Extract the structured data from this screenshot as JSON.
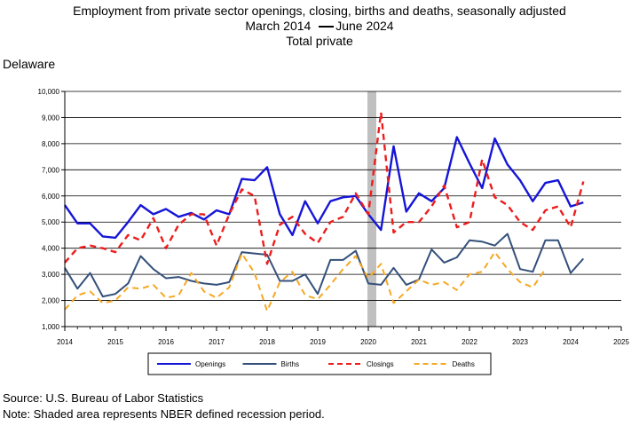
{
  "header": {
    "line1": "Employment from private sector openings, closing, births and deaths, seasonally adjusted",
    "line2_start": "March 2014",
    "line2_end": "June 2024",
    "line3": "Total private"
  },
  "region": "Delaware",
  "footer": {
    "source": "Source: U.S. Bureau of Labor Statistics",
    "note": "Note: Shaded area represents NBER defined recession period."
  },
  "chart_data": {
    "type": "line",
    "x_range": [
      2014,
      2025
    ],
    "y_range": [
      1000,
      10000
    ],
    "x_ticks": [
      "2014",
      "2015",
      "2016",
      "2017",
      "2018",
      "2019",
      "2020",
      "2021",
      "2022",
      "2023",
      "2024",
      "2025"
    ],
    "y_ticks": [
      "1,000",
      "2,000",
      "3,000",
      "4,000",
      "5,000",
      "6,000",
      "7,000",
      "8,000",
      "9,000",
      "10,000"
    ],
    "grid": "horizontal",
    "legend_position": "bottom",
    "recession_shading": {
      "start": 2020.0,
      "end": 2020.17
    },
    "series": [
      {
        "name": "Openings",
        "color": "#1515d8",
        "dash": "solid",
        "width": 2.4,
        "start": 2014.0,
        "values": [
          5650,
          4950,
          4950,
          4450,
          4400,
          5000,
          5650,
          5300,
          5500,
          5200,
          5350,
          5100,
          5450,
          5300,
          6650,
          6600,
          7100,
          5300,
          4500,
          5800,
          4950,
          5800,
          5950,
          6000,
          5300,
          4700,
          7900,
          5400,
          6100,
          5800,
          6300,
          8250,
          7250,
          6300,
          8200,
          7200,
          6600,
          5800,
          6500,
          6600,
          5600,
          5750
        ]
      },
      {
        "name": "Births",
        "color": "#34507a",
        "dash": "solid",
        "width": 2.0,
        "start": 2014.0,
        "values": [
          3250,
          2450,
          3050,
          2150,
          2250,
          2650,
          3700,
          3200,
          2850,
          2900,
          2750,
          2650,
          2600,
          2700,
          3850,
          3800,
          3750,
          2750,
          2750,
          3000,
          2250,
          3550,
          3550,
          3900,
          2650,
          2600,
          3250,
          2600,
          2800,
          3950,
          3450,
          3650,
          4300,
          4250,
          4100,
          4550,
          3200,
          3100,
          4300,
          4300,
          3050,
          3600
        ]
      },
      {
        "name": "Closings",
        "color": "#ee1c1c",
        "dash": "dashed",
        "width": 2.4,
        "start": 2014.0,
        "values": [
          3450,
          4000,
          4100,
          4000,
          3850,
          4500,
          4300,
          5150,
          4000,
          4900,
          5300,
          5300,
          4100,
          5300,
          6250,
          6000,
          3400,
          4900,
          5200,
          4550,
          4200,
          5000,
          5200,
          6100,
          5300,
          9200,
          4600,
          5000,
          5000,
          5600,
          6400,
          4800,
          5000,
          7400,
          5950,
          5650,
          5000,
          4700,
          5450,
          5600,
          4800,
          6550
        ]
      },
      {
        "name": "Deaths",
        "color": "#f5a823",
        "dash": "dashed",
        "width": 2.0,
        "start": 2014.0,
        "values": [
          1650,
          2200,
          2350,
          1900,
          2000,
          2500,
          2450,
          2600,
          2100,
          2200,
          3050,
          2350,
          2100,
          2500,
          3800,
          3050,
          1600,
          2700,
          3100,
          2200,
          2050,
          2600,
          3200,
          3700,
          2850,
          3400,
          1900,
          2350,
          2800,
          2600,
          2700,
          2400,
          3000,
          3100,
          3850,
          3200,
          2700,
          2500,
          3200,
          null,
          null,
          null
        ]
      }
    ]
  }
}
